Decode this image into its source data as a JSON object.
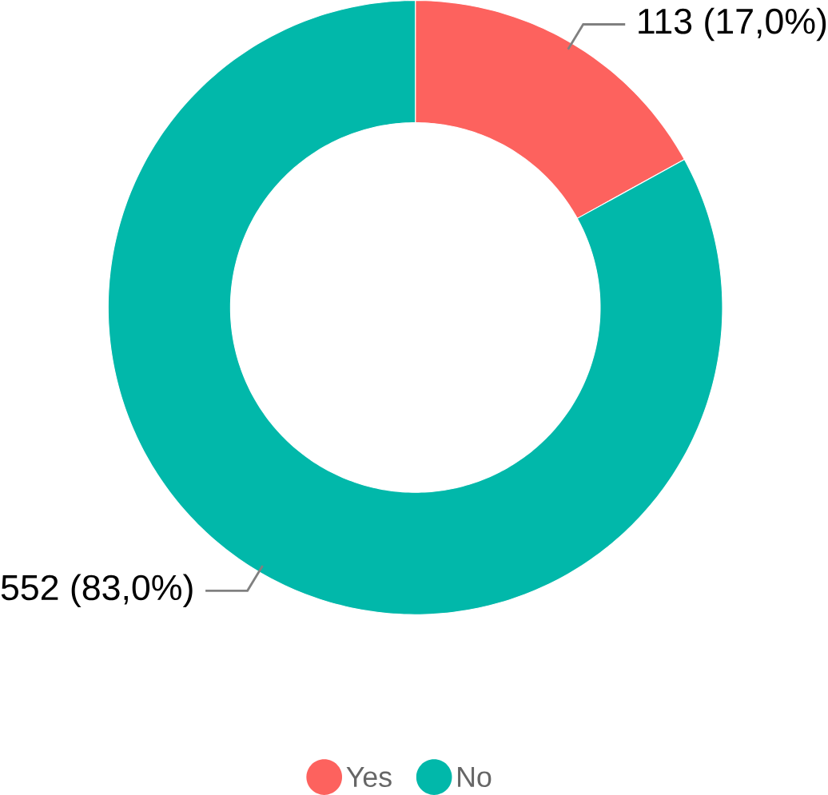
{
  "chart_data": {
    "type": "donut",
    "categories": [
      "Yes",
      "No"
    ],
    "values": [
      113,
      552
    ],
    "colors": [
      "#fd625e",
      "#01b8aa"
    ],
    "value_labels": [
      "113 (17,0%)",
      "552 (83,0%)"
    ],
    "legend": "bottom"
  }
}
